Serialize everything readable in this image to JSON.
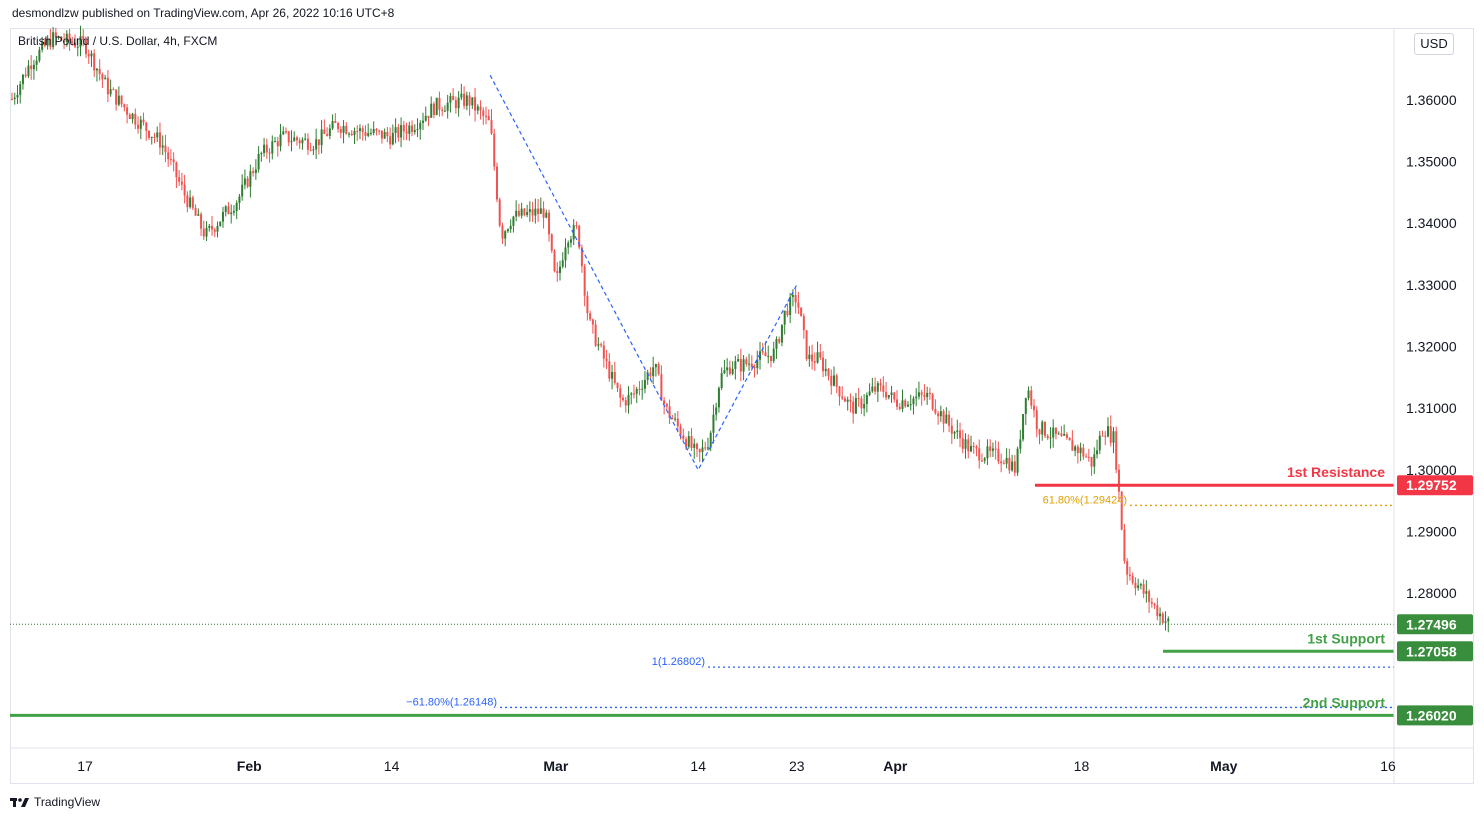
{
  "header": {
    "publish_line": "desmondlzw published on TradingView.com, Apr 26, 2022 10:16 UTC+8"
  },
  "symbol": {
    "legend": "British Pound / U.S. Dollar, 4h, FXCM"
  },
  "price_axis": {
    "currency": "USD",
    "ticks": [
      "1.36000",
      "1.35000",
      "1.34000",
      "1.33000",
      "1.32000",
      "1.31000",
      "1.30000",
      "1.29000",
      "1.28000"
    ]
  },
  "time_axis": {
    "ticks": [
      "17",
      "Feb",
      "14",
      "Mar",
      "14",
      "23",
      "Apr",
      "18",
      "May",
      "16"
    ]
  },
  "footer": {
    "brand": "TradingView"
  },
  "colors": {
    "up": "#2e7d32",
    "down": "#ef5350",
    "resistance": "#f23645",
    "support": "#43a047",
    "fib": "#2962ff",
    "fib_gold": "#e0a000",
    "axis_text": "#131722",
    "grid_border": "#e0e3eb",
    "current_price_badge": "#388e3c"
  },
  "chart_data": {
    "type": "candlestick",
    "symbol": "British Pound / U.S. Dollar, 4h, FXCM",
    "ylim": [
      1.2549,
      1.3715
    ],
    "close_path": [
      [
        "Jan 10",
        1.359
      ],
      [
        "Jan 12",
        1.366
      ],
      [
        "Jan 14",
        1.37
      ],
      [
        "Jan 17",
        1.369
      ],
      [
        "Jan 19",
        1.362
      ],
      [
        "Jan 21",
        1.358
      ],
      [
        "Jan 24",
        1.353
      ],
      [
        "Jan 26",
        1.345
      ],
      [
        "Jan 28",
        1.338
      ],
      [
        "Jan 31",
        1.344
      ],
      [
        "Feb 2",
        1.351
      ],
      [
        "Feb 4",
        1.354
      ],
      [
        "Feb 7",
        1.353
      ],
      [
        "Feb 9",
        1.356
      ],
      [
        "Feb 11",
        1.355
      ],
      [
        "Feb 14",
        1.354
      ],
      [
        "Feb 16",
        1.356
      ],
      [
        "Feb 18",
        1.359
      ],
      [
        "Feb 21",
        1.36
      ],
      [
        "Feb 23",
        1.356
      ],
      [
        "Feb 24",
        1.338
      ],
      [
        "Feb 25",
        1.341
      ],
      [
        "Feb 28",
        1.342
      ],
      [
        "Mar 1",
        1.33
      ],
      [
        "Mar 2",
        1.338
      ],
      [
        "Mar 3",
        1.339
      ],
      [
        "Mar 4",
        1.324
      ],
      [
        "Mar 7",
        1.311
      ],
      [
        "Mar 8",
        1.312
      ],
      [
        "Mar 10",
        1.317
      ],
      [
        "Mar 11",
        1.31
      ],
      [
        "Mar 14",
        1.302
      ],
      [
        "Mar 15",
        1.305
      ],
      [
        "Mar 16",
        1.315
      ],
      [
        "Mar 17",
        1.317
      ],
      [
        "Mar 18",
        1.317
      ],
      [
        "Mar 21",
        1.319
      ],
      [
        "Mar 22",
        1.326
      ],
      [
        "Mar 23",
        1.328
      ],
      [
        "Mar 24",
        1.318
      ],
      [
        "Mar 25",
        1.318
      ],
      [
        "Mar 28",
        1.31
      ],
      [
        "Mar 29",
        1.311
      ],
      [
        "Mar 30",
        1.313
      ],
      [
        "Mar 31",
        1.313
      ],
      [
        "Apr 1",
        1.311
      ],
      [
        "Apr 4",
        1.312
      ],
      [
        "Apr 6",
        1.307
      ],
      [
        "Apr 8",
        1.303
      ],
      [
        "Apr 11",
        1.302
      ],
      [
        "Apr 12",
        1.3
      ],
      [
        "Apr 13",
        1.314
      ],
      [
        "Apr 14",
        1.307
      ],
      [
        "Apr 18",
        1.303
      ],
      [
        "Apr 19",
        1.301
      ],
      [
        "Apr 20",
        1.307
      ],
      [
        "Apr 21",
        1.305
      ],
      [
        "Apr 22",
        1.284
      ],
      [
        "Apr 25",
        1.277
      ],
      [
        "Apr 26",
        1.275
      ]
    ],
    "current_price": 1.27496,
    "levels": [
      {
        "label": "1st Resistance",
        "value": "1.29752"
      },
      {
        "label": "1st Support",
        "value": "1.27058"
      },
      {
        "label": "2nd Support",
        "value": "1.26020"
      }
    ],
    "fib_levels": [
      {
        "label": "61.80%(1.29424)",
        "value": 1.29424
      },
      {
        "label": "1(1.26802)",
        "value": 1.26802
      },
      {
        "label": "−61.80%(1.26148)",
        "value": 1.26148
      }
    ],
    "fib_points": [
      [
        "Feb 23",
        1.364
      ],
      [
        "Mar 14",
        1.3
      ],
      [
        "Mar 23",
        1.33
      ]
    ],
    "x_ticks": [
      "17",
      "Feb",
      "14",
      "Mar",
      "14",
      "23",
      "Apr",
      "18",
      "May",
      "16"
    ],
    "y_ticks": [
      "1.36000",
      "1.35000",
      "1.34000",
      "1.33000",
      "1.32000",
      "1.31000",
      "1.30000",
      "1.29000",
      "1.28000"
    ],
    "price_labels": [
      "1.29752",
      "1.27496",
      "1.27058",
      "1.26020"
    ]
  }
}
